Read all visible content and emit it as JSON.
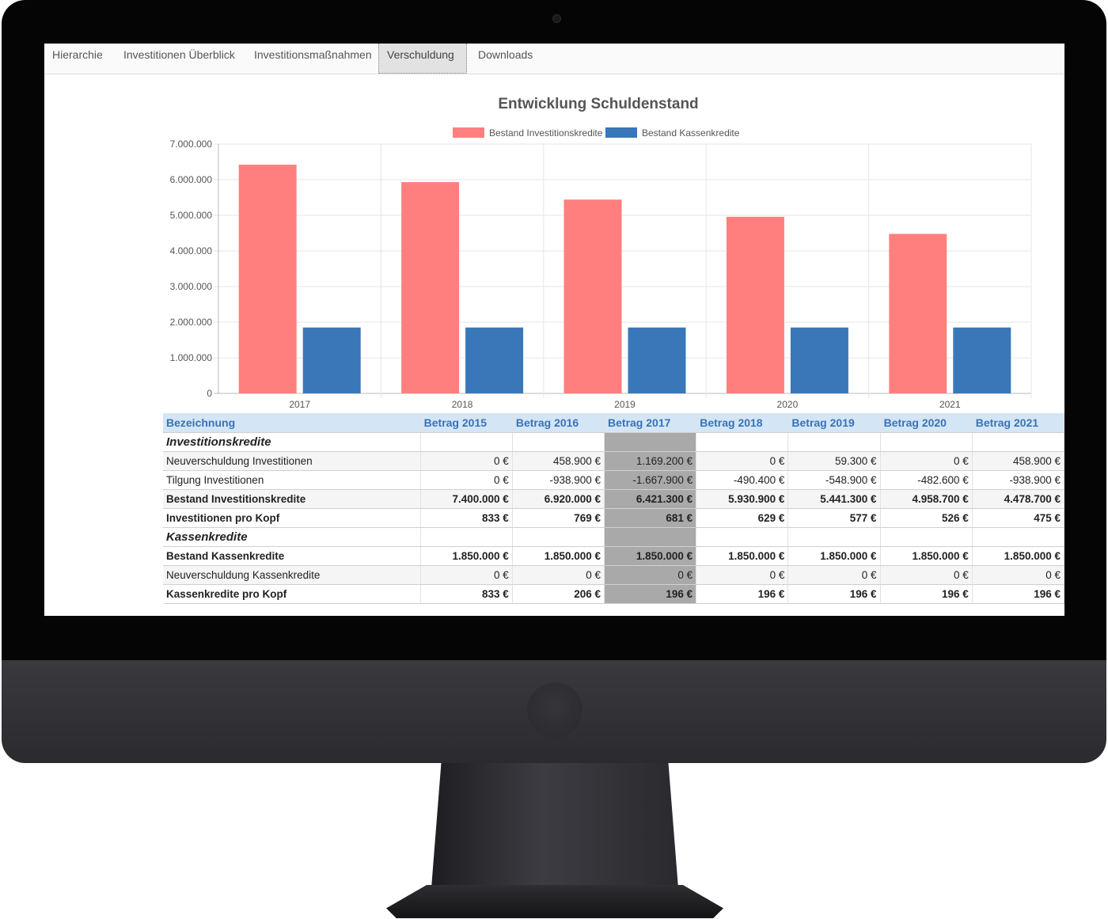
{
  "tabs": [
    {
      "label": "Hierarchie"
    },
    {
      "label": "Investitionen Überblick"
    },
    {
      "label": "Investitionsmaßnahmen"
    },
    {
      "label": "Verschuldung"
    },
    {
      "label": "Downloads"
    }
  ],
  "active_tab": "Verschuldung",
  "chart_data": {
    "type": "bar",
    "title": "Entwicklung Schuldenstand",
    "categories": [
      "2017",
      "2018",
      "2019",
      "2020",
      "2021"
    ],
    "series": [
      {
        "name": "Bestand Investitionskredite",
        "color": "#ff7f7f",
        "values": [
          6421300,
          5930900,
          5441300,
          4958700,
          4478700
        ]
      },
      {
        "name": "Bestand Kassenkredite",
        "color": "#3a77b8",
        "values": [
          1850000,
          1850000,
          1850000,
          1850000,
          1850000
        ]
      }
    ],
    "ylim": [
      0,
      7000000
    ],
    "yticks": [
      "0",
      "1.000.000",
      "2.000.000",
      "3.000.000",
      "4.000.000",
      "5.000.000",
      "6.000.000",
      "7.000.000"
    ],
    "legend_position": "top",
    "grid": true,
    "xlabel": "",
    "ylabel": ""
  },
  "table": {
    "headers": [
      "Bezeichnung",
      "Betrag 2015",
      "Betrag 2016",
      "Betrag 2017",
      "Betrag 2018",
      "Betrag 2019",
      "Betrag 2020",
      "Betrag 2021"
    ],
    "highlight_column": "Betrag 2017",
    "rows": [
      {
        "type": "section",
        "label": "Investitionskredite",
        "values": [
          "",
          "",
          "",
          "",
          "",
          "",
          ""
        ]
      },
      {
        "type": "normal",
        "label": "Neuverschuldung Investitionen",
        "values": [
          "0 €",
          "458.900 €",
          "1.169.200 €",
          "0 €",
          "59.300 €",
          "0 €",
          "458.900 €"
        ]
      },
      {
        "type": "normal",
        "label": "Tilgung Investitionen",
        "values": [
          "0 €",
          "-938.900 €",
          "-1.667.900 €",
          "-490.400 €",
          "-548.900 €",
          "-482.600 €",
          "-938.900 €"
        ]
      },
      {
        "type": "bold",
        "label": "Bestand Investitionskredite",
        "values": [
          "7.400.000 €",
          "6.920.000 €",
          "6.421.300 €",
          "5.930.900 €",
          "5.441.300 €",
          "4.958.700 €",
          "4.478.700 €"
        ]
      },
      {
        "type": "bold",
        "label": "Investitionen pro Kopf",
        "values": [
          "833 €",
          "769 €",
          "681 €",
          "629 €",
          "577 €",
          "526 €",
          "475 €"
        ]
      },
      {
        "type": "section",
        "label": "Kassenkredite",
        "values": [
          "",
          "",
          "",
          "",
          "",
          "",
          ""
        ]
      },
      {
        "type": "bold",
        "label": "Bestand Kassenkredite",
        "values": [
          "1.850.000 €",
          "1.850.000 €",
          "1.850.000 €",
          "1.850.000 €",
          "1.850.000 €",
          "1.850.000 €",
          "1.850.000 €"
        ]
      },
      {
        "type": "normal",
        "label": "Neuverschuldung Kassenkredite",
        "values": [
          "0 €",
          "0 €",
          "0 €",
          "0 €",
          "0 €",
          "0 €",
          "0 €"
        ]
      },
      {
        "type": "bold",
        "label": "Kassenkredite pro Kopf",
        "values": [
          "833 €",
          "206 €",
          "196 €",
          "196 €",
          "196 €",
          "196 €",
          "196 €"
        ]
      }
    ]
  }
}
